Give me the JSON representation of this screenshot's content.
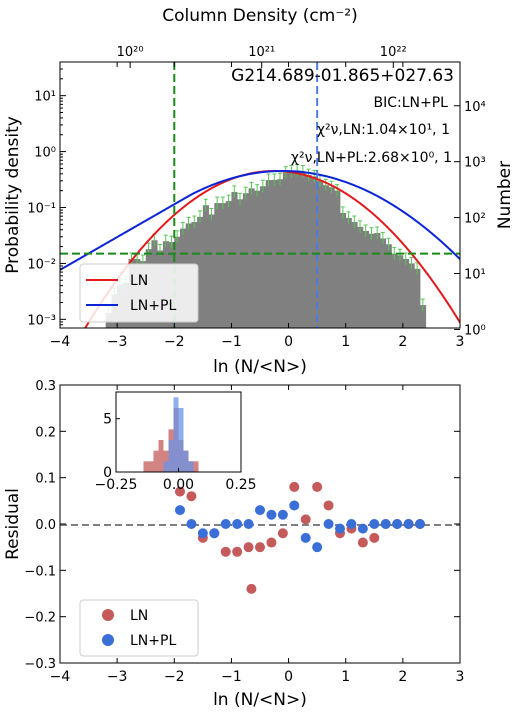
{
  "chart_data": [
    {
      "type": "bar",
      "title": "G214.689-01.865+027.63",
      "annotations": {
        "bic": "BIC:LN+PL",
        "chi_ln": "χ²ν,LN:1.04×10¹, 1",
        "chi_lnpl": "χ²ν,LN+PL:2.68×10⁰, 1"
      },
      "xlabel": "ln (N/<N>)",
      "ylabel": "Probability density",
      "ylabel_right": "Number",
      "xlabel_top": "Column Density (cm⁻²)",
      "xlim": [
        -4,
        3
      ],
      "ylim": [
        0.0007,
        40
      ],
      "y_scale": "log",
      "x_ticks": [
        "−4",
        "−3",
        "−2",
        "−1",
        "0",
        "1",
        "2",
        "3"
      ],
      "y_ticks": [
        "10⁻³",
        "10⁻²",
        "10⁻¹",
        "10⁰",
        "10¹"
      ],
      "y_right_ticks": [
        "10⁰",
        "10¹",
        "10²",
        "10³",
        "10⁴"
      ],
      "top_ticks": [
        "10²⁰",
        "10²¹",
        "10²²"
      ],
      "histogram": {
        "bin_edges": [
          -3.2,
          -3.1,
          -3.0,
          -2.9,
          -2.8,
          -2.7,
          -2.6,
          -2.5,
          -2.4,
          -2.3,
          -2.2,
          -2.1,
          -2.0,
          -1.9,
          -1.8,
          -1.7,
          -1.6,
          -1.5,
          -1.4,
          -1.3,
          -1.2,
          -1.1,
          -1.0,
          -0.9,
          -0.8,
          -0.7,
          -0.6,
          -0.5,
          -0.4,
          -0.3,
          -0.2,
          -0.1,
          0.0,
          0.1,
          0.2,
          0.3,
          0.4,
          0.5,
          0.6,
          0.7,
          0.8,
          0.9,
          1.0,
          1.1,
          1.2,
          1.3,
          1.4,
          1.5,
          1.6,
          1.7,
          1.8,
          1.9,
          2.0,
          2.1,
          2.2,
          2.3,
          2.4
        ],
        "values": [
          0.0013,
          0.0028,
          0.0042,
          0.0045,
          0.012,
          0.012,
          0.011,
          0.018,
          0.026,
          0.017,
          0.025,
          0.024,
          0.03,
          0.042,
          0.052,
          0.055,
          0.068,
          0.11,
          0.075,
          0.12,
          0.12,
          0.13,
          0.19,
          0.14,
          0.18,
          0.22,
          0.2,
          0.24,
          0.31,
          0.31,
          0.32,
          0.42,
          0.44,
          0.46,
          0.44,
          0.38,
          0.36,
          0.3,
          0.25,
          0.23,
          0.2,
          0.08,
          0.065,
          0.055,
          0.045,
          0.038,
          0.034,
          0.035,
          0.028,
          0.022,
          0.015,
          0.014,
          0.012,
          0.01,
          0.008,
          0.0018
        ]
      },
      "series": [
        {
          "name": "LN",
          "color": "#e31a1c",
          "curve": "lognormal",
          "mu": -0.25,
          "sigma": 0.92,
          "peak": 0.45
        },
        {
          "name": "LN+PL",
          "color": "#0a24d8",
          "curve": "lognormal_powerlaw",
          "mu": -0.1,
          "sigma": 1.15,
          "peak": 0.45,
          "transition_x": -1.7,
          "power_slope": 1.35
        }
      ],
      "reference_lines": {
        "vertical_green_x": -2.0,
        "vertical_blue_x": 0.5,
        "horizontal_green_y": 0.015
      },
      "legend": {
        "placement": "lower-left",
        "entries": [
          "LN",
          "LN+PL"
        ]
      }
    },
    {
      "type": "scatter",
      "xlabel": "ln (N/<N>)",
      "ylabel": "Residual",
      "xlim": [
        -4,
        3
      ],
      "ylim": [
        -0.3,
        0.3
      ],
      "x_ticks": [
        "−4",
        "−3",
        "−2",
        "−1",
        "0",
        "1",
        "2",
        "3"
      ],
      "y_ticks": [
        "−0.3",
        "−0.2",
        "−0.1",
        "0.0",
        "0.1",
        "0.2",
        "0.3"
      ],
      "zero_line": 0.0,
      "series": [
        {
          "name": "LN",
          "color": "#c55a5a",
          "x": [
            -1.9,
            -1.7,
            -1.5,
            -1.3,
            -1.1,
            -0.9,
            -0.7,
            -0.65,
            -0.5,
            -0.3,
            -0.1,
            0.1,
            0.3,
            0.5,
            0.7,
            0.9,
            1.1,
            1.3,
            1.5,
            1.7,
            1.9,
            2.1,
            2.3
          ],
          "y": [
            0.07,
            0.06,
            -0.03,
            -0.02,
            -0.06,
            -0.06,
            -0.05,
            -0.14,
            -0.05,
            -0.04,
            -0.02,
            0.08,
            0.01,
            0.08,
            0.04,
            -0.02,
            -0.01,
            -0.04,
            -0.03,
            0.0,
            0.0,
            0.0,
            0.0
          ]
        },
        {
          "name": "LN+PL",
          "color": "#3a6fd8",
          "x": [
            -1.9,
            -1.7,
            -1.5,
            -1.3,
            -1.1,
            -0.9,
            -0.7,
            -0.5,
            -0.3,
            -0.1,
            0.1,
            0.3,
            0.5,
            0.7,
            0.9,
            1.1,
            1.3,
            1.5,
            1.7,
            1.9,
            2.1,
            2.3
          ],
          "y": [
            0.03,
            0.0,
            -0.02,
            -0.02,
            0.0,
            0.0,
            0.0,
            0.03,
            0.02,
            0.02,
            0.04,
            -0.03,
            -0.05,
            0.0,
            -0.01,
            0.0,
            -0.01,
            0.0,
            0.0,
            0.0,
            0.0,
            0.0
          ]
        }
      ],
      "legend": {
        "placement": "lower-left",
        "entries": [
          "LN",
          "LN+PL"
        ]
      }
    },
    {
      "type": "bar",
      "xlim": [
        -0.25,
        0.25
      ],
      "ylim": [
        0,
        7.5
      ],
      "x_ticks": [
        "−0.25",
        "0.00",
        "0.25"
      ],
      "y_ticks": [
        "0",
        "5"
      ],
      "bin_edges": [
        -0.14,
        -0.12,
        -0.1,
        -0.08,
        -0.06,
        -0.04,
        -0.02,
        0.0,
        0.02,
        0.04,
        0.06,
        0.08
      ],
      "series": [
        {
          "name": "LN",
          "color": "#c55a5a",
          "values": [
            1,
            1,
            2,
            3,
            2,
            4,
            6,
            3,
            2,
            1,
            1
          ]
        },
        {
          "name": "LN+PL",
          "color": "#6a93e6",
          "values": [
            0,
            0,
            0,
            0,
            1,
            3,
            7,
            6,
            2,
            1,
            0
          ]
        }
      ]
    }
  ]
}
